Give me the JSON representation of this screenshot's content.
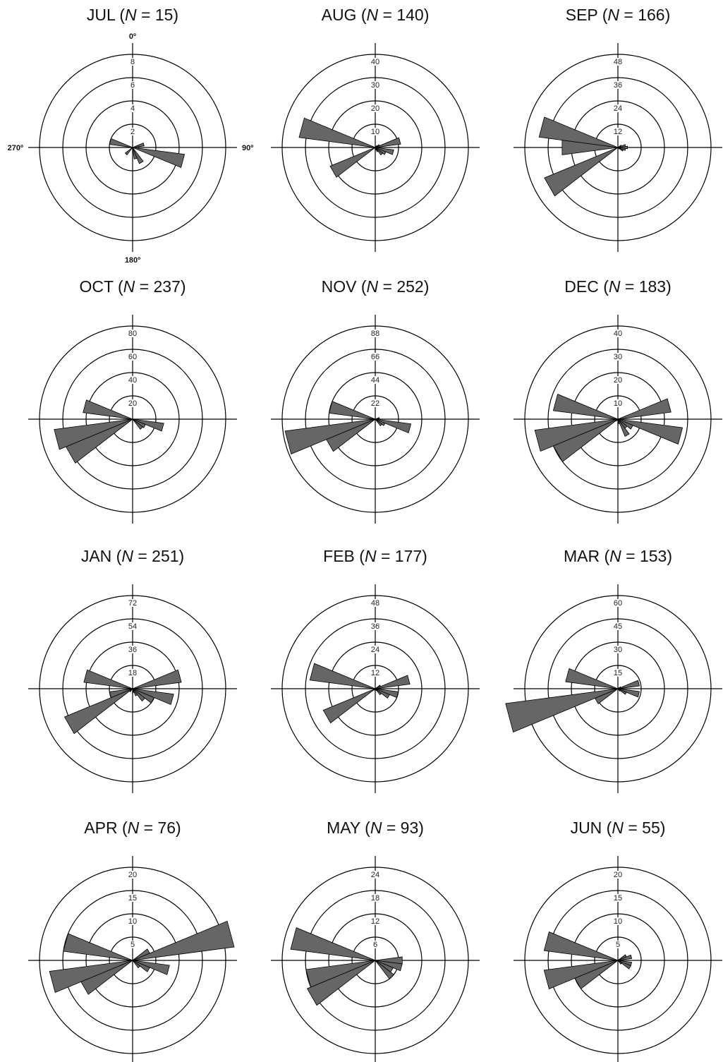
{
  "chart_data": [
    {
      "type": "rose",
      "title": "JUL (N = 15)",
      "title_month": "JUL",
      "title_count": "15",
      "ring_labels": [
        "2",
        "4",
        "6",
        "8"
      ],
      "rmax": 10,
      "direction_labels": {
        "north": "0º",
        "east": "90º",
        "south": "180º",
        "west": "270º"
      },
      "directions_deg": [
        0,
        15,
        30,
        45,
        60,
        75,
        90,
        105,
        120,
        135,
        150,
        165,
        180,
        195,
        210,
        225,
        240,
        255,
        270,
        285,
        300,
        315,
        330,
        345
      ],
      "values": [
        0,
        0,
        0,
        0,
        0,
        1,
        0.5,
        4.5,
        0,
        0,
        1.5,
        1,
        0,
        0,
        0,
        0.8,
        0,
        0,
        0,
        2,
        0,
        0,
        0,
        0
      ]
    },
    {
      "type": "rose",
      "title": "AUG (N = 140)",
      "title_month": "AUG",
      "title_count": "140",
      "ring_labels": [
        "10",
        "20",
        "30",
        "40"
      ],
      "rmax": 50,
      "directions_deg": [
        0,
        15,
        30,
        45,
        60,
        75,
        90,
        105,
        120,
        135,
        150,
        165,
        180,
        195,
        210,
        225,
        240,
        255,
        270,
        285,
        300,
        315,
        330,
        345
      ],
      "values": [
        0,
        0,
        0,
        1,
        2,
        11,
        0,
        8,
        5,
        4,
        2,
        1,
        0,
        0,
        0,
        0,
        21,
        0,
        0,
        33,
        0,
        0,
        0,
        0
      ]
    },
    {
      "type": "rose",
      "title": "SEP (N = 166)",
      "title_month": "SEP",
      "title_count": "166",
      "ring_labels": [
        "12",
        "24",
        "36",
        "48"
      ],
      "rmax": 60,
      "directions_deg": [
        0,
        15,
        30,
        45,
        60,
        75,
        90,
        105,
        120,
        135,
        150,
        165,
        180,
        195,
        210,
        225,
        240,
        255,
        270,
        285,
        300,
        315,
        330,
        345
      ],
      "values": [
        0,
        0,
        0,
        0,
        2,
        4,
        5,
        4,
        3,
        1,
        0,
        0,
        0,
        0,
        0,
        0,
        41,
        0,
        29,
        41,
        0,
        0,
        0,
        0
      ]
    },
    {
      "type": "rose",
      "title": "OCT (N = 237)",
      "title_month": "OCT",
      "title_count": "237",
      "ring_labels": [
        "20",
        "40",
        "60",
        "80"
      ],
      "rmax": 100,
      "directions_deg": [
        0,
        15,
        30,
        45,
        60,
        75,
        90,
        105,
        120,
        135,
        150,
        165,
        180,
        195,
        210,
        225,
        240,
        255,
        270,
        285,
        300,
        315,
        330,
        345
      ],
      "values": [
        0,
        0,
        0,
        0,
        0,
        0,
        0,
        27,
        12,
        11,
        0,
        0,
        0,
        0,
        0,
        0,
        62,
        68,
        0,
        43,
        0,
        0,
        0,
        0
      ]
    },
    {
      "type": "rose",
      "title": "NOV (N = 252)",
      "title_month": "NOV",
      "title_count": "252",
      "ring_labels": [
        "22",
        "44",
        "66",
        "88"
      ],
      "rmax": 110,
      "directions_deg": [
        0,
        15,
        30,
        45,
        60,
        75,
        90,
        105,
        120,
        135,
        150,
        165,
        180,
        195,
        210,
        225,
        240,
        255,
        270,
        285,
        300,
        315,
        330,
        345
      ],
      "values": [
        0,
        0,
        0,
        0,
        0,
        4,
        2,
        34,
        10,
        8,
        0,
        0,
        0,
        0,
        0,
        0,
        50,
        86,
        0,
        44,
        0,
        0,
        0,
        0
      ]
    },
    {
      "type": "rose",
      "title": "DEC (N = 183)",
      "title_month": "DEC",
      "title_count": "183",
      "ring_labels": [
        "10",
        "20",
        "30",
        "40"
      ],
      "rmax": 50,
      "directions_deg": [
        0,
        15,
        30,
        45,
        60,
        75,
        90,
        105,
        120,
        135,
        150,
        165,
        180,
        195,
        210,
        225,
        240,
        255,
        270,
        285,
        300,
        315,
        330,
        345
      ],
      "values": [
        0,
        0,
        0,
        0,
        0,
        23,
        0,
        28,
        7,
        5,
        8,
        2,
        0,
        0,
        0,
        1,
        30,
        36,
        0,
        28,
        0,
        0,
        0,
        0
      ]
    },
    {
      "type": "rose",
      "title": "JAN (N = 251)",
      "title_month": "JAN",
      "title_count": "251",
      "ring_labels": [
        "18",
        "36",
        "54",
        "72"
      ],
      "rmax": 90,
      "directions_deg": [
        0,
        15,
        30,
        45,
        60,
        75,
        90,
        105,
        120,
        135,
        150,
        165,
        180,
        195,
        210,
        225,
        240,
        255,
        270,
        285,
        300,
        315,
        330,
        345
      ],
      "values": [
        0,
        0,
        0,
        0,
        0,
        38,
        0,
        32,
        18,
        12,
        6,
        3,
        0,
        0,
        0,
        3,
        57,
        18,
        0,
        38,
        0,
        0,
        0,
        0
      ]
    },
    {
      "type": "rose",
      "title": "FEB (N = 177)",
      "title_month": "FEB",
      "title_count": "177",
      "ring_labels": [
        "12",
        "24",
        "36",
        "48"
      ],
      "rmax": 60,
      "directions_deg": [
        0,
        15,
        30,
        45,
        60,
        75,
        90,
        105,
        120,
        135,
        150,
        165,
        180,
        195,
        210,
        225,
        240,
        255,
        270,
        285,
        300,
        315,
        330,
        345
      ],
      "values": [
        0,
        0,
        0,
        0,
        3,
        18,
        2,
        12,
        8,
        4,
        1,
        0,
        0,
        0,
        0,
        1,
        29,
        0,
        0,
        34,
        0,
        0,
        0,
        0
      ]
    },
    {
      "type": "rose",
      "title": "MAR (N = 153)",
      "title_month": "MAR",
      "title_count": "153",
      "ring_labels": [
        "15",
        "30",
        "45",
        "60"
      ],
      "rmax": 75,
      "directions_deg": [
        0,
        15,
        30,
        45,
        60,
        75,
        90,
        105,
        120,
        135,
        150,
        165,
        180,
        195,
        210,
        225,
        240,
        255,
        270,
        285,
        300,
        315,
        330,
        345
      ],
      "values": [
        0,
        0,
        0,
        0,
        2,
        14,
        0,
        14,
        6,
        2,
        0,
        0,
        0,
        0,
        0,
        0,
        16,
        73,
        0,
        34,
        0,
        0,
        0,
        0
      ]
    },
    {
      "type": "rose",
      "title": "APR (N = 76)",
      "title_month": "APR",
      "title_count": "76",
      "ring_labels": [
        "5",
        "10",
        "15",
        "20"
      ],
      "rmax": 25,
      "directions_deg": [
        0,
        15,
        30,
        45,
        60,
        75,
        90,
        105,
        120,
        135,
        150,
        165,
        180,
        195,
        210,
        225,
        240,
        255,
        270,
        285,
        300,
        315,
        330,
        345
      ],
      "values": [
        0,
        0,
        0,
        0,
        4,
        22,
        0,
        8,
        4,
        2,
        0,
        0,
        0,
        0,
        0,
        0,
        12,
        18,
        0,
        15,
        0,
        0,
        0,
        0
      ]
    },
    {
      "type": "rose",
      "title": "MAY (N = 93)",
      "title_month": "MAY",
      "title_count": "93",
      "ring_labels": [
        "6",
        "12",
        "18",
        "24"
      ],
      "rmax": 30,
      "directions_deg": [
        0,
        15,
        30,
        45,
        60,
        75,
        90,
        105,
        120,
        135,
        150,
        165,
        180,
        195,
        210,
        225,
        240,
        255,
        270,
        285,
        300,
        315,
        330,
        345
      ],
      "values": [
        0,
        0,
        0,
        0,
        0,
        0,
        7,
        7,
        5,
        6,
        0,
        0,
        0,
        0,
        0,
        0,
        19,
        18,
        0,
        22,
        0,
        0,
        0,
        0
      ]
    },
    {
      "type": "rose",
      "title": "JUN (N = 55)",
      "title_month": "JUN",
      "title_count": "55",
      "ring_labels": [
        "5",
        "10",
        "15",
        "20"
      ],
      "rmax": 25,
      "directions_deg": [
        0,
        15,
        30,
        45,
        60,
        75,
        90,
        105,
        120,
        135,
        150,
        165,
        180,
        195,
        210,
        225,
        240,
        255,
        270,
        285,
        300,
        315,
        330,
        345
      ],
      "values": [
        0,
        0,
        0,
        0,
        2,
        3,
        0,
        3,
        3,
        1,
        0,
        0,
        0,
        0,
        0,
        0,
        10,
        16,
        0,
        16,
        0,
        0,
        0,
        0
      ]
    }
  ]
}
